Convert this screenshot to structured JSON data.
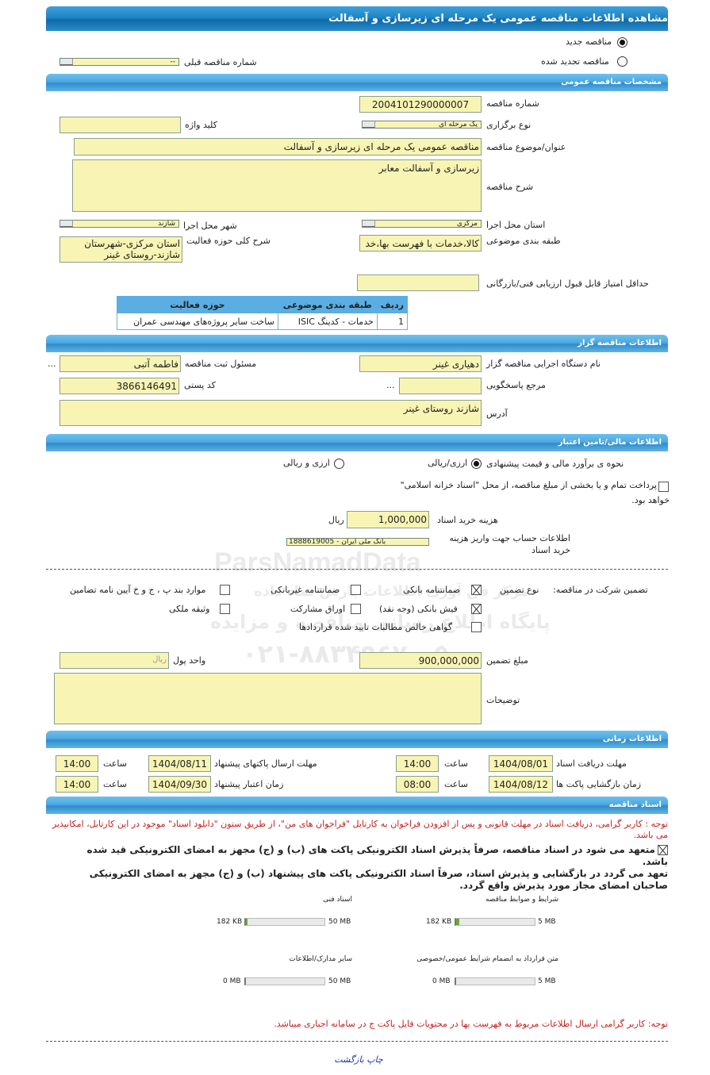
{
  "header": {
    "title": "مشاهده اطلاعات مناقصه عمومی یک مرحله ای زیرسازی و آسفالت"
  },
  "tender_type": {
    "new_label": "مناقصه جدید",
    "new_selected": true,
    "renewed_label": "مناقصه تجدید شده",
    "renewed_selected": false,
    "prev_number_label": "شماره مناقصه قبلی",
    "prev_number_value": "--"
  },
  "general": {
    "section_title": "مشخصات مناقصه عمومی",
    "number_label": "شماره مناقصه",
    "number_value": "2004101290000007",
    "holding_type_label": "نوع برگزاری",
    "holding_type_value": "یک مرحله ای",
    "keyword_label": "کلید واژه",
    "keyword_value": "",
    "title_label": "عنوان/موضوع مناقصه",
    "title_value": "مناقصه عمومی یک مرحله ای زیرسازی و آسفالت",
    "description_label": "شرح مناقصه",
    "description_value": "زیرسازی و آسفالت معابر",
    "province_label": "استان محل اجرا",
    "province_value": "مرکزی",
    "city_label": "شهر محل اجرا",
    "city_value": "شازند",
    "category_label": "طبقه بندی موضوعی",
    "category_value": "کالا،خدمات با فهرست بها،خد",
    "activity_label": "شرح کلی حوزه فعالیت",
    "activity_value": "استان مرکزی-شهرستان شازند-روستای غینر",
    "min_score_label": "حداقل امتیاز قابل قبول ارزیابی فنی/بازرگانی",
    "min_score_value": "",
    "table": {
      "headers": [
        "ردیف",
        "طبقه بندی موضوعی",
        "حوزه فعالیت"
      ],
      "rows": [
        [
          "1",
          "خدمات - کدینگ ISIC",
          "ساخت سایر پروژه‌های مهندسی عمران"
        ]
      ]
    }
  },
  "organizer": {
    "section_title": "اطلاعات مناقصه گزار",
    "agency_label": "نام دستگاه اجرایی مناقصه گزار",
    "agency_value": "دهیاری غینر",
    "registrar_label": "مسئول ثبت مناقصه",
    "registrar_value": "فاطمه آتبی",
    "more": "...",
    "reference_label": "مرجع پاسخگویی",
    "reference_value": "",
    "postal_label": "کد پستی",
    "postal_value": "3866146491",
    "address_label": "آدرس",
    "address_value": "شازند روستای غینر"
  },
  "finance": {
    "section_title": "اطلاعات مالی/تامین اعتبار",
    "estimate_label": "نحوه ی برآورد مالی و قیمت پیشنهادی",
    "opt_rial": "ارزی/ریالی",
    "opt_rial_selected": true,
    "opt_both": "ارزی و ریالی",
    "opt_both_selected": false,
    "treasury_line1": "پرداخت تمام و یا بخشی از مبلغ مناقصه، از محل \"اسناد خزانه اسلامی\"",
    "treasury_line2": "خواهد بود.",
    "treasury_checked": false,
    "doc_cost_label": "هزینه خرید اسناد",
    "doc_cost_value": "1,000,000",
    "doc_cost_unit": "ریال",
    "account_label": "اطلاعات حساب جهت واریز هزینه خرید اسناد",
    "account_value": "1888619005 - بانک ملی ایران"
  },
  "guarantee": {
    "label": "تضمین شرکت در مناقصه:",
    "type_label": "نوع تضمین",
    "options": [
      {
        "label": "ضمانتنامه بانکی",
        "checked": true
      },
      {
        "label": "ضمانتنامه غیربانکی",
        "checked": false
      },
      {
        "label": "موارد بند پ ، ج و خ آیین نامه تضامین",
        "checked": false
      },
      {
        "label": "فیش بانکی (وجه نقد)",
        "checked": true
      },
      {
        "label": "اوراق مشارکت",
        "checked": false
      },
      {
        "label": "وثیقه ملکی",
        "checked": false
      },
      {
        "label": "گواهی خالص مطالبات تایید شده قراردادها",
        "checked": false
      }
    ],
    "amount_label": "مبلغ تضمین",
    "amount_value": "900,000,000",
    "currency_label": "واحد پول",
    "currency_placeholder": "ریال",
    "notes_label": "توضیحات",
    "notes_value": ""
  },
  "timing": {
    "section_title": "اطلاعات زمانی",
    "hour_label": "ساعت",
    "doc_deadline_label": "مهلت دریافت اسناد",
    "doc_deadline_date": "1404/08/01",
    "doc_deadline_time": "14:00",
    "submit_deadline_label": "مهلت ارسال پاکتهای پیشنهاد",
    "submit_deadline_date": "1404/08/11",
    "submit_deadline_time": "14:00",
    "opening_label": "زمان بازگشایی پاکت ها",
    "opening_date": "1404/08/12",
    "opening_time": "08:00",
    "validity_label": "زمان اعتبار پیشنهاد",
    "validity_date": "1404/09/30",
    "validity_time": "14:00"
  },
  "documents": {
    "section_title": "اسناد مناقصه",
    "notice": "توجه : کاربر گرامی، دریافت اسناد در مهلت قانونی و پس از افزودن فراخوان به کارتابل \"فراخوان های من\"، از طریق ستون \"دانلود اسناد\" موجود در این کارتابل، امکانپذیر می باشد.",
    "commit_checked": true,
    "commit1": "متعهد می شود در اسناد مناقصه، صرفاً پذیرش اسناد الکترونیکی پاکت های (ب) و (ج) مجهز به امضای الکترونیکی قید شده باشد.",
    "commit2": "تعهد می گردد در بازگشایی و پذیرش اسناد، صرفاً اسناد الکترونیکی پاکت های پیشنهاد (ب) و (ج) مجهز به امضای الکترونیکی صاحبان امضای مجاز مورد پذیرش واقع گردد.",
    "files": [
      {
        "label": "شرایط و ضوابط مناقصه",
        "used": "182 KB",
        "max": "5 MB",
        "fraction": 0.036
      },
      {
        "label": "اسناد فنی",
        "used": "182 KB",
        "max": "50 MB",
        "fraction": 0.0036
      },
      {
        "label": "متن قرارداد به انضمام شرایط عمومی/خصوصی",
        "used": "0 MB",
        "max": "5 MB",
        "fraction": 0
      },
      {
        "label": "سایر مدارک/اطلاعات",
        "used": "0 MB",
        "max": "50 MB",
        "fraction": 0
      }
    ],
    "notice2": "توجه: کاربر گرامی ارسال اطلاعات مربوط به فهرست بها در محتویات فایل پاکت ج در سامانه اجباری میباشد."
  },
  "footer": {
    "print": "چاپ",
    "back": "بازگشت"
  },
  "watermark": {
    "brand": "ParsNamadData",
    "line1": "مرکز فن آوری اطلاعات پارس نماد داده",
    "line2": "پایگاه اطلاع رسانی مناقصه و مزایده",
    "phone": "۰۲۱-۸۸۳۴۹۶۷۰-۵"
  },
  "colors": {
    "header": "#1f86c6",
    "section": "#4fa8df",
    "field": "#f8f5b4",
    "notice": "#c8201e",
    "link": "#2233aa"
  }
}
